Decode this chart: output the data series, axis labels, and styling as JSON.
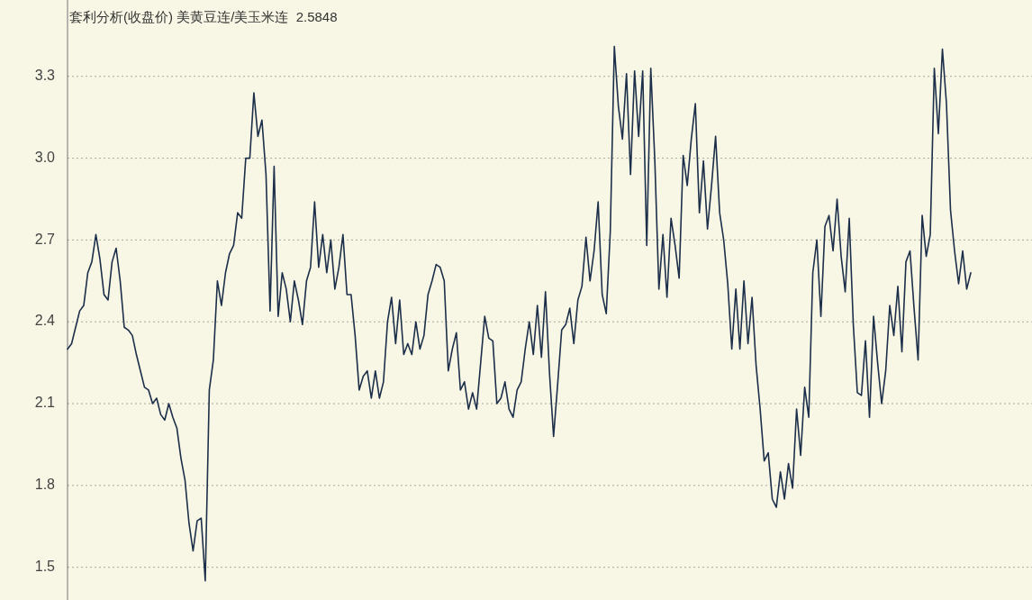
{
  "chart_data": {
    "type": "line",
    "title": "套利分析(收盘价) 美黄豆连/美玉米连  2.5848",
    "categories": [
      null,
      null,
      null,
      null,
      null,
      null,
      null,
      null,
      null,
      null,
      null,
      null,
      null,
      null,
      null,
      null,
      null,
      null,
      null,
      null,
      null,
      null,
      null,
      null,
      null,
      null,
      null,
      null,
      null,
      null,
      null,
      null,
      null,
      null,
      null,
      null,
      null,
      null,
      null,
      null,
      null,
      null,
      null,
      null,
      null,
      null,
      null,
      null,
      null,
      null,
      null,
      null,
      null,
      null,
      null,
      null,
      null,
      null,
      null,
      null,
      null,
      null,
      null,
      null,
      null,
      null,
      null,
      null,
      null,
      null,
      null,
      null,
      null,
      null,
      null,
      null,
      null,
      null,
      null,
      null,
      null,
      null,
      null,
      null,
      null,
      null,
      null,
      null,
      null,
      null,
      null,
      null,
      null,
      null,
      null,
      null,
      null,
      null,
      null,
      null,
      null,
      null,
      null,
      null,
      null,
      null,
      null,
      null,
      null,
      null,
      null,
      null,
      null,
      null,
      null,
      null,
      null,
      null,
      null,
      null,
      null,
      null,
      null,
      null,
      null,
      null,
      null,
      null,
      null,
      null,
      null,
      null,
      null,
      null,
      null,
      null,
      null,
      null,
      null,
      null,
      null,
      null,
      null,
      null,
      null,
      null,
      null,
      null,
      null,
      null,
      null,
      null,
      null,
      null,
      null,
      null,
      null,
      null,
      null,
      null,
      null,
      null,
      null,
      null,
      null,
      null,
      null,
      null,
      null,
      null,
      null,
      null,
      null,
      null,
      null,
      null,
      null,
      null,
      null,
      null,
      null,
      null,
      null,
      null,
      null,
      null,
      null,
      null,
      null,
      null,
      null,
      null,
      null,
      null,
      null,
      null,
      null,
      null,
      null,
      null,
      null,
      null,
      null,
      null,
      null,
      null,
      null,
      null,
      null,
      null,
      null,
      null,
      null,
      null,
      null,
      null,
      null,
      null,
      null,
      null,
      null,
      null,
      null,
      null
    ],
    "series": [
      {
        "color": "#1c2f4a",
        "values": [
          2.3,
          2.32,
          2.38,
          2.44,
          2.46,
          2.58,
          2.62,
          2.72,
          2.63,
          2.5,
          2.48,
          2.62,
          2.67,
          2.55,
          2.38,
          2.37,
          2.35,
          2.28,
          2.22,
          2.16,
          2.15,
          2.1,
          2.12,
          2.06,
          2.04,
          2.1,
          2.05,
          2.01,
          1.9,
          1.82,
          1.66,
          1.56,
          1.67,
          1.68,
          1.45,
          2.15,
          2.26,
          2.55,
          2.46,
          2.58,
          2.65,
          2.68,
          2.8,
          2.78,
          3.0,
          3.0,
          3.24,
          3.08,
          3.14,
          2.94,
          2.44,
          2.97,
          2.42,
          2.58,
          2.52,
          2.4,
          2.55,
          2.48,
          2.39,
          2.55,
          2.6,
          2.84,
          2.6,
          2.72,
          2.58,
          2.7,
          2.52,
          2.6,
          2.72,
          2.5,
          2.5,
          2.35,
          2.15,
          2.2,
          2.22,
          2.12,
          2.22,
          2.12,
          2.18,
          2.4,
          2.49,
          2.32,
          2.48,
          2.28,
          2.32,
          2.28,
          2.4,
          2.3,
          2.35,
          2.5,
          2.55,
          2.61,
          2.6,
          2.55,
          2.22,
          2.3,
          2.36,
          2.15,
          2.18,
          2.08,
          2.14,
          2.08,
          2.25,
          2.42,
          2.34,
          2.33,
          2.1,
          2.12,
          2.18,
          2.08,
          2.05,
          2.15,
          2.18,
          2.3,
          2.4,
          2.28,
          2.46,
          2.27,
          2.51,
          2.21,
          1.98,
          2.17,
          2.37,
          2.39,
          2.45,
          2.32,
          2.48,
          2.53,
          2.71,
          2.55,
          2.66,
          2.84,
          2.5,
          2.43,
          2.73,
          3.41,
          3.19,
          3.07,
          3.31,
          2.94,
          3.32,
          3.08,
          3.32,
          2.68,
          3.33,
          2.99,
          2.52,
          2.72,
          2.49,
          2.78,
          2.68,
          2.56,
          3.01,
          2.9,
          3.07,
          3.2,
          2.8,
          2.99,
          2.74,
          2.9,
          3.08,
          2.8,
          2.7,
          2.54,
          2.3,
          2.52,
          2.3,
          2.55,
          2.32,
          2.49,
          2.24,
          2.08,
          1.89,
          1.92,
          1.75,
          1.72,
          1.85,
          1.75,
          1.88,
          1.79,
          2.08,
          1.91,
          2.16,
          2.05,
          2.58,
          2.7,
          2.42,
          2.75,
          2.79,
          2.66,
          2.85,
          2.64,
          2.51,
          2.78,
          2.39,
          2.14,
          2.13,
          2.33,
          2.05,
          2.42,
          2.25,
          2.1,
          2.22,
          2.46,
          2.35,
          2.53,
          2.29,
          2.62,
          2.66,
          2.45,
          2.26,
          2.79,
          2.64,
          2.72,
          3.33,
          3.09,
          3.4,
          3.2,
          2.81,
          2.66,
          2.54,
          2.66,
          2.52,
          2.58
        ]
      }
    ],
    "ylim": [
      1.38,
      3.58
    ],
    "yticks": [
      1.5,
      1.8,
      2.1,
      2.4,
      2.7,
      {
        "value": 3,
        "label": "3.0"
      },
      3.3
    ],
    "grid": "y",
    "marker": "none",
    "line_style": "solid"
  }
}
